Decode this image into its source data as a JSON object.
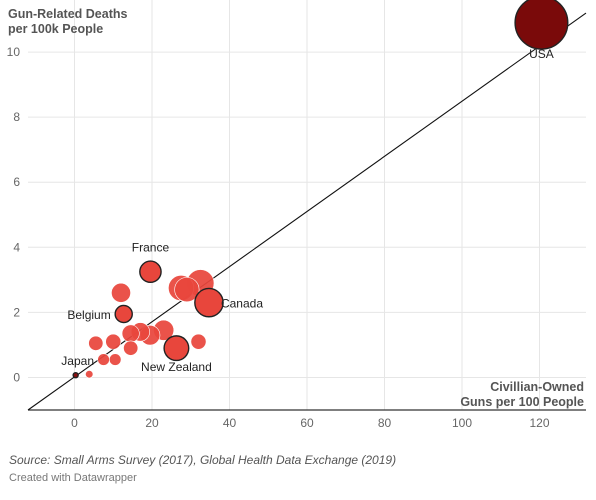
{
  "chart_data": {
    "type": "scatter",
    "title": "",
    "ylabel": [
      "Gun-Related Deaths",
      "per 100k People"
    ],
    "xlabel": [
      "Civillian-Owned",
      "Guns per 100 People"
    ],
    "xlim": [
      -12,
      132
    ],
    "ylim": [
      -1.0,
      11.6
    ],
    "xticks": [
      0,
      20,
      40,
      60,
      80,
      100,
      120
    ],
    "yticks": [
      0,
      2,
      4,
      6,
      8,
      10
    ],
    "grid": true,
    "trendline": {
      "from": [
        -12,
        -1.0
      ],
      "to": [
        132,
        11.2
      ]
    },
    "colors": {
      "bubble": "#e8463c",
      "highlight_border": "#222222",
      "usa": "#7a0a0a",
      "small": "#a01a1a"
    },
    "points": [
      {
        "label": "USA",
        "x": 120.5,
        "y": 10.9,
        "size": 120.5,
        "color": "#7a0a0a",
        "outlined": true
      },
      {
        "label": "France",
        "x": 19.6,
        "y": 3.25,
        "size": 19.6,
        "color": "#e8463c",
        "outlined": true
      },
      {
        "label": "Canada",
        "x": 34.7,
        "y": 2.3,
        "size": 34.7,
        "color": "#e8463c",
        "outlined": true
      },
      {
        "label": "Belgium",
        "x": 12.7,
        "y": 1.95,
        "size": 12.7,
        "color": "#e8463c",
        "outlined": true
      },
      {
        "label": "New Zealand",
        "x": 26.3,
        "y": 0.9,
        "size": 26.3,
        "color": "#e8463c",
        "outlined": true
      },
      {
        "label": "Japan",
        "x": 0.3,
        "y": 0.07,
        "size": 0.3,
        "color": "#8a1010",
        "outlined": true
      },
      {
        "label": "",
        "x": 12.0,
        "y": 2.6,
        "size": 16,
        "color": "#e8463c",
        "outlined": false
      },
      {
        "label": "",
        "x": 27.5,
        "y": 2.75,
        "size": 28,
        "color": "#e8463c",
        "outlined": false
      },
      {
        "label": "",
        "x": 29.0,
        "y": 2.7,
        "size": 26,
        "color": "#e8463c",
        "outlined": false
      },
      {
        "label": "",
        "x": 32.5,
        "y": 2.9,
        "size": 32,
        "color": "#e8463c",
        "outlined": false
      },
      {
        "label": "",
        "x": 17.0,
        "y": 1.4,
        "size": 15,
        "color": "#e8463c",
        "outlined": false
      },
      {
        "label": "",
        "x": 19.5,
        "y": 1.3,
        "size": 17,
        "color": "#e8463c",
        "outlined": false
      },
      {
        "label": "",
        "x": 14.5,
        "y": 1.35,
        "size": 13,
        "color": "#e8463c",
        "outlined": false
      },
      {
        "label": "",
        "x": 23.0,
        "y": 1.45,
        "size": 18,
        "color": "#e8463c",
        "outlined": false
      },
      {
        "label": "",
        "x": 10.0,
        "y": 1.1,
        "size": 10,
        "color": "#e8463c",
        "outlined": false
      },
      {
        "label": "",
        "x": 5.5,
        "y": 1.05,
        "size": 9,
        "color": "#e8463c",
        "outlined": false
      },
      {
        "label": "",
        "x": 14.5,
        "y": 0.9,
        "size": 9,
        "color": "#e8463c",
        "outlined": false
      },
      {
        "label": "",
        "x": 32.0,
        "y": 1.1,
        "size": 10,
        "color": "#e8463c",
        "outlined": false
      },
      {
        "label": "",
        "x": 7.5,
        "y": 0.55,
        "size": 6,
        "color": "#e8463c",
        "outlined": false
      },
      {
        "label": "",
        "x": 10.5,
        "y": 0.55,
        "size": 6,
        "color": "#e8463c",
        "outlined": false
      },
      {
        "label": "",
        "x": 3.8,
        "y": 0.1,
        "size": 2.5,
        "color": "#e8463c",
        "outlined": false
      }
    ]
  },
  "footer": {
    "source": "Source: Small Arms Survey (2017), Global Health Data Exchange (2019)",
    "credit": "Created with Datawrapper"
  }
}
